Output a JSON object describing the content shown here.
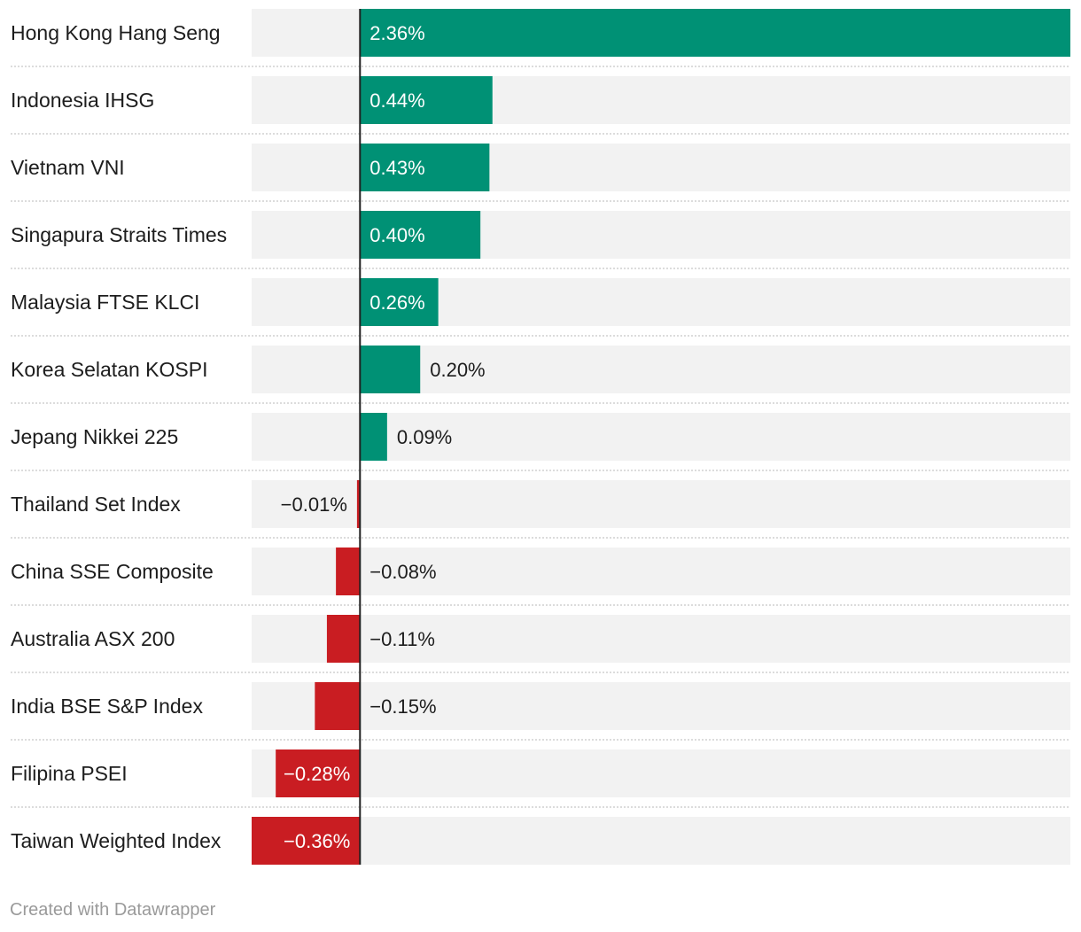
{
  "chart_data": {
    "type": "bar",
    "orientation": "horizontal",
    "categories": [
      "Hong Kong Hang Seng",
      "Indonesia IHSG",
      "Vietnam VNI",
      "Singapura Straits Times",
      "Malaysia FTSE KLCI",
      "Korea Selatan KOSPI",
      "Jepang Nikkei 225",
      "Thailand Set Index",
      "China SSE Composite",
      "Australia ASX 200",
      "India BSE S&P Index",
      "Filipina PSEI",
      "Taiwan Weighted Index"
    ],
    "values": [
      2.36,
      0.44,
      0.43,
      0.4,
      0.26,
      0.2,
      0.09,
      -0.01,
      -0.08,
      -0.11,
      -0.15,
      -0.28,
      -0.36
    ],
    "value_labels": [
      "2.36%",
      "0.44%",
      "0.43%",
      "0.40%",
      "0.26%",
      "0.20%",
      "0.09%",
      "−0.01%",
      "−0.08%",
      "−0.11%",
      "−0.15%",
      "−0.28%",
      "−0.36%"
    ],
    "xlim": [
      -0.36,
      2.36
    ],
    "grid": false,
    "legend": "none",
    "colors": {
      "positive": "#009175",
      "negative": "#c91d22",
      "track": "#f2f2f2",
      "baseline": "#222222",
      "separator": "#c8c8c8"
    }
  },
  "footer": {
    "credit": "Created with Datawrapper"
  }
}
